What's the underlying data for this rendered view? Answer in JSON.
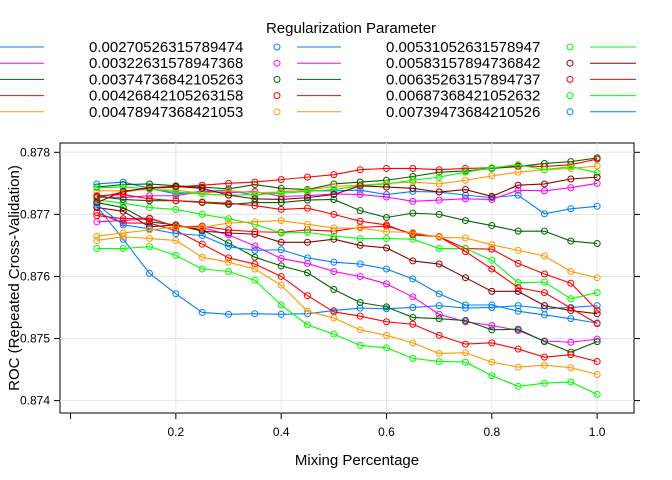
{
  "chart_data": {
    "type": "line",
    "title": "",
    "xlabel": "Mixing Percentage",
    "ylabel": "ROC (Repeated Cross-Validation)",
    "legend_title": "Regularization Parameter",
    "legend_position": "top",
    "grid": true,
    "xlim": [
      -0.02,
      1.07
    ],
    "ylim": [
      0.8738,
      0.87815
    ],
    "x_ticks": [
      0.2,
      0.4,
      0.6,
      0.8,
      1.0
    ],
    "x_tick_labels": [
      "0.2",
      "0.4",
      "0.6",
      "0.8",
      "1.0"
    ],
    "y_ticks": [
      0.874,
      0.875,
      0.876,
      0.877,
      0.878
    ],
    "y_tick_labels": [
      "0.874",
      "0.875",
      "0.876",
      "0.877",
      "0.878"
    ],
    "x": [
      0.05,
      0.1,
      0.15,
      0.2,
      0.25,
      0.3,
      0.35,
      0.4,
      0.45,
      0.5,
      0.55,
      0.6,
      0.65,
      0.7,
      0.75,
      0.8,
      0.85,
      0.9,
      0.95,
      1.0
    ],
    "series": [
      {
        "name": "0.00270526315789474",
        "color": "#0080ff",
        "values": [
          0.87713,
          0.8766,
          0.87605,
          0.87572,
          0.87542,
          0.87539,
          0.8754,
          0.87539,
          0.8754,
          0.87545,
          0.87549,
          0.87548,
          0.8755,
          0.87553,
          0.87549,
          0.8755,
          0.87553,
          0.87548,
          0.8755,
          0.87553
        ]
      },
      {
        "name": "0.00322631578947368",
        "color": "#ff00ff",
        "values": [
          0.87688,
          0.8769,
          0.87693,
          0.87681,
          0.87679,
          0.87667,
          0.87649,
          0.87629,
          0.87621,
          0.87608,
          0.876,
          0.87588,
          0.87567,
          0.87539,
          0.87527,
          0.87521,
          0.87513,
          0.87496,
          0.87494,
          0.87499
        ]
      },
      {
        "name": "0.00374736842105263",
        "color": "#006400",
        "values": [
          0.87719,
          0.87711,
          0.87688,
          0.87683,
          0.87675,
          0.87654,
          0.87631,
          0.87617,
          0.87606,
          0.87579,
          0.87558,
          0.87551,
          0.87534,
          0.87532,
          0.87529,
          0.87514,
          0.87515,
          0.87495,
          0.87478,
          0.87495
        ]
      },
      {
        "name": "0.00426842105263158",
        "color": "#ff0000",
        "values": [
          0.87703,
          0.87686,
          0.87686,
          0.87674,
          0.87652,
          0.8763,
          0.8762,
          0.876,
          0.87569,
          0.87543,
          0.87536,
          0.87527,
          0.87523,
          0.87505,
          0.87491,
          0.87493,
          0.87483,
          0.8747,
          0.87474,
          0.87463
        ]
      },
      {
        "name": "0.00478947368421053",
        "color": "#ff9900",
        "values": [
          0.87658,
          0.87664,
          0.87661,
          0.87658,
          0.87631,
          0.87623,
          0.87612,
          0.87586,
          0.87544,
          0.87533,
          0.87514,
          0.87505,
          0.87493,
          0.87476,
          0.87477,
          0.87462,
          0.87454,
          0.87457,
          0.87453,
          0.87442
        ]
      },
      {
        "name": "0.00531052631578947",
        "color": "#00ff00",
        "values": [
          0.87645,
          0.87645,
          0.87648,
          0.87634,
          0.87612,
          0.87608,
          0.87594,
          0.87554,
          0.87522,
          0.87507,
          0.87489,
          0.87485,
          0.87468,
          0.87463,
          0.87462,
          0.8744,
          0.87423,
          0.87428,
          0.8743,
          0.8741
        ]
      },
      {
        "name": "0.00583157894736842",
        "color": "#8b0000",
        "values": [
          0.87711,
          0.87705,
          0.8768,
          0.87683,
          0.87673,
          0.8767,
          0.87668,
          0.87655,
          0.87655,
          0.8766,
          0.8765,
          0.87646,
          0.87625,
          0.8762,
          0.87598,
          0.87576,
          0.87576,
          0.87553,
          0.87545,
          0.8754
        ]
      },
      {
        "name": "0.00635263157894737",
        "color": "#ff0000",
        "values": [
          0.87698,
          0.87693,
          0.87694,
          0.8768,
          0.87681,
          0.87675,
          0.87672,
          0.87671,
          0.87675,
          0.87673,
          0.87679,
          0.87681,
          0.87669,
          0.87664,
          0.87645,
          0.87644,
          0.87621,
          0.87604,
          0.87589,
          0.87546
        ]
      },
      {
        "name": "0.00687368421052632",
        "color": "#00ff00",
        "values": [
          0.87723,
          0.87718,
          0.87711,
          0.87708,
          0.877,
          0.87693,
          0.87684,
          0.8767,
          0.87671,
          0.87665,
          0.87661,
          0.87661,
          0.8766,
          0.87645,
          0.87645,
          0.87626,
          0.8759,
          0.87591,
          0.87564,
          0.87574
        ]
      },
      {
        "name": "0.00739473684210526",
        "color": "#0080ff",
        "values": [
          0.87716,
          0.87683,
          0.87677,
          0.87669,
          0.87666,
          0.87648,
          0.87642,
          0.87643,
          0.8763,
          0.87623,
          0.8762,
          0.87612,
          0.87596,
          0.87572,
          0.87554,
          0.87554,
          0.87544,
          0.87538,
          0.87532,
          0.87525
        ]
      },
      {
        "name": "",
        "color": "#0080ff",
        "values": [
          0.87749,
          0.87752,
          0.87742,
          0.87733,
          0.87737,
          0.87739,
          0.87731,
          0.87737,
          0.87738,
          0.87738,
          0.87739,
          0.87732,
          0.87737,
          0.87736,
          0.87731,
          0.87727,
          0.87731,
          0.87701,
          0.87709,
          0.87713
        ]
      },
      {
        "name": "",
        "color": "#ff00ff",
        "values": [
          0.87728,
          0.87727,
          0.8773,
          0.8773,
          0.87737,
          0.87735,
          0.87737,
          0.87729,
          0.8773,
          0.87733,
          0.87732,
          0.87728,
          0.87721,
          0.87723,
          0.87725,
          0.87724,
          0.87739,
          0.87738,
          0.87743,
          0.8775
        ]
      },
      {
        "name": "",
        "color": "#006400",
        "values": [
          0.87744,
          0.87748,
          0.87749,
          0.87746,
          0.87744,
          0.87741,
          0.87748,
          0.87742,
          0.8774,
          0.87749,
          0.87752,
          0.87755,
          0.87761,
          0.87768,
          0.8777,
          0.87774,
          0.87777,
          0.87782,
          0.87785,
          0.87791
        ]
      },
      {
        "name": "",
        "color": "#ff0000",
        "values": [
          0.87727,
          0.87736,
          0.87742,
          0.87744,
          0.87747,
          0.8775,
          0.87752,
          0.87756,
          0.8776,
          0.87764,
          0.87772,
          0.87774,
          0.87774,
          0.87772,
          0.87774,
          0.87775,
          0.87778,
          0.87777,
          0.8778,
          0.87789
        ]
      },
      {
        "name": "",
        "color": "#ff9900",
        "values": [
          0.87738,
          0.87738,
          0.8774,
          0.87739,
          0.87734,
          0.87738,
          0.87735,
          0.87736,
          0.87739,
          0.87745,
          0.87747,
          0.8775,
          0.87752,
          0.87749,
          0.87755,
          0.87762,
          0.87768,
          0.87772,
          0.87774,
          0.87778
        ]
      },
      {
        "name": "",
        "color": "#00ff00",
        "values": [
          0.87743,
          0.87744,
          0.87741,
          0.87736,
          0.87733,
          0.87731,
          0.87732,
          0.87734,
          0.87737,
          0.8774,
          0.87746,
          0.87749,
          0.87755,
          0.8776,
          0.87768,
          0.87775,
          0.8778,
          0.87772,
          0.87777,
          0.87767
        ]
      },
      {
        "name": "",
        "color": "#8b0000",
        "values": [
          0.87719,
          0.87737,
          0.87743,
          0.87745,
          0.87742,
          0.87731,
          0.87725,
          0.87724,
          0.87727,
          0.87732,
          0.87746,
          0.87744,
          0.87742,
          0.87736,
          0.8774,
          0.87729,
          0.87747,
          0.87749,
          0.87757,
          0.8776
        ]
      },
      {
        "name": "",
        "color": "#006400",
        "values": [
          0.87729,
          0.87724,
          0.87722,
          0.87722,
          0.87719,
          0.87716,
          0.87719,
          0.87719,
          0.87723,
          0.87724,
          0.87706,
          0.87695,
          0.87702,
          0.877,
          0.8769,
          0.87682,
          0.87673,
          0.87673,
          0.87657,
          0.87653
        ]
      },
      {
        "name": "",
        "color": "#ff0000",
        "values": [
          0.8773,
          0.87732,
          0.87725,
          0.87722,
          0.8772,
          0.87718,
          0.87714,
          0.87708,
          0.8771,
          0.877,
          0.87689,
          0.87683,
          0.87667,
          0.87664,
          0.8764,
          0.87612,
          0.87582,
          0.87574,
          0.87549,
          0.87524
        ]
      },
      {
        "name": "",
        "color": "#ff9900",
        "values": [
          0.87665,
          0.8767,
          0.87675,
          0.8768,
          0.87679,
          0.87686,
          0.87688,
          0.8769,
          0.87684,
          0.87678,
          0.87678,
          0.87672,
          0.87671,
          0.87663,
          0.87662,
          0.87651,
          0.87642,
          0.87633,
          0.87608,
          0.87598
        ]
      }
    ]
  }
}
